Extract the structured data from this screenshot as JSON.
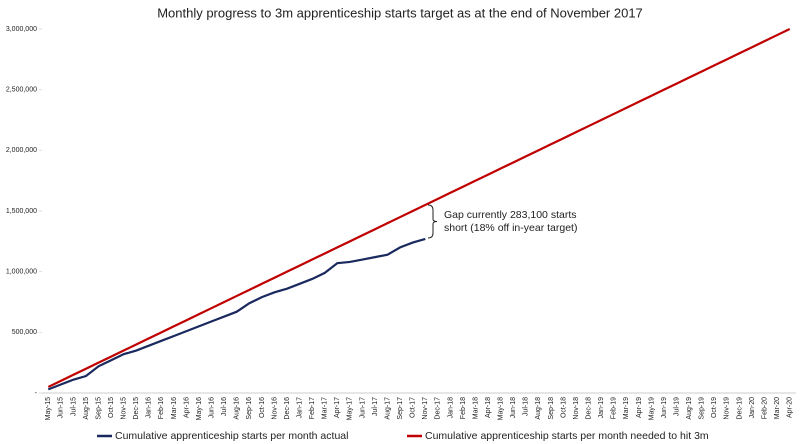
{
  "chart_data": {
    "type": "line",
    "title": "Monthly progress to 3m apprenticeship starts target as at the end of November 2017",
    "categories": [
      "May-15",
      "Jun-15",
      "Jul-15",
      "Aug-15",
      "Sep-15",
      "Oct-15",
      "Nov-15",
      "Dec-15",
      "Jan-16",
      "Feb-16",
      "Mar-16",
      "Apr-16",
      "May-16",
      "Jun-16",
      "Jul-16",
      "Aug-16",
      "Sep-16",
      "Oct-16",
      "Nov-16",
      "Dec-16",
      "Jan-17",
      "Feb-17",
      "Mar-17",
      "Apr-17",
      "May-17",
      "Jun-17",
      "Jul-17",
      "Aug-17",
      "Sep-17",
      "Oct-17",
      "Nov-17",
      "Dec-17",
      "Jan-18",
      "Feb-18",
      "Mar-18",
      "Apr-18",
      "May-18",
      "Jun-18",
      "Jul-18",
      "Aug-18",
      "Sep-18",
      "Oct-18",
      "Nov-18",
      "Dec-18",
      "Jan-19",
      "Feb-19",
      "Mar-19",
      "Apr-19",
      "May-19",
      "Jun-19",
      "Jul-19",
      "Aug-19",
      "Sep-19",
      "Oct-19",
      "Nov-19",
      "Dec-19",
      "Jan-20",
      "Feb-20",
      "Mar-20",
      "Apr-20"
    ],
    "series": [
      {
        "name": "Cumulative apprenticeship starts per month actual",
        "color": "#1a2a5e",
        "values": [
          30000,
          70000,
          110000,
          140000,
          220000,
          270000,
          320000,
          350000,
          390000,
          430000,
          470000,
          510000,
          550000,
          590000,
          630000,
          670000,
          740000,
          790000,
          830000,
          860000,
          900000,
          940000,
          990000,
          1070000,
          1080000,
          1100000,
          1120000,
          1140000,
          1200000,
          1240000,
          1270000,
          null,
          null,
          null,
          null,
          null,
          null,
          null,
          null,
          null,
          null,
          null,
          null,
          null,
          null,
          null,
          null,
          null,
          null,
          null,
          null,
          null,
          null,
          null,
          null,
          null,
          null,
          null,
          null,
          null
        ]
      },
      {
        "name": "Cumulative apprenticeship starts per month needed to hit 3m",
        "color": "#c00000",
        "values": [
          50000,
          100000,
          150000,
          200000,
          250000,
          300000,
          350000,
          400000,
          450000,
          500000,
          550000,
          600000,
          650000,
          700000,
          750000,
          800000,
          850000,
          900000,
          950000,
          1000000,
          1050000,
          1100000,
          1150000,
          1200000,
          1250000,
          1300000,
          1350000,
          1400000,
          1450000,
          1500000,
          1550000,
          1600000,
          1650000,
          1700000,
          1750000,
          1800000,
          1850000,
          1900000,
          1950000,
          2000000,
          2050000,
          2100000,
          2150000,
          2200000,
          2250000,
          2300000,
          2350000,
          2400000,
          2450000,
          2500000,
          2550000,
          2600000,
          2650000,
          2700000,
          2750000,
          2800000,
          2850000,
          2900000,
          2950000,
          3000000
        ]
      }
    ],
    "ylim": [
      0,
      3000000
    ],
    "yticks": [
      {
        "value": 0,
        "label": "-"
      },
      {
        "value": 500000,
        "label": "500,000"
      },
      {
        "value": 1000000,
        "label": "1,000,000"
      },
      {
        "value": 1500000,
        "label": "1,500,000"
      },
      {
        "value": 2000000,
        "label": "2,000,000"
      },
      {
        "value": 2500000,
        "label": "2,500,000"
      },
      {
        "value": 3000000,
        "label": "3,000,000"
      }
    ],
    "annotation": [
      "Gap currently 283,100 starts",
      "short (18% off in-year target)"
    ]
  }
}
